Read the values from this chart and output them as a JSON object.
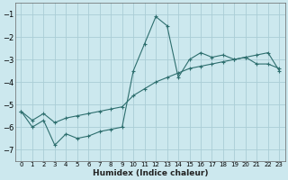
{
  "xlabel": "Humidex (Indice chaleur)",
  "ylabel": "",
  "background_color": "#cce8ee",
  "grid_color": "#aacdd6",
  "line_color": "#2d6e6e",
  "xlim": [
    -0.5,
    23.5
  ],
  "ylim": [
    -7.5,
    -0.5
  ],
  "yticks": [
    -7,
    -6,
    -5,
    -4,
    -3,
    -2,
    -1
  ],
  "xticks": [
    0,
    1,
    2,
    3,
    4,
    5,
    6,
    7,
    8,
    9,
    10,
    11,
    12,
    13,
    14,
    15,
    16,
    17,
    18,
    19,
    20,
    21,
    22,
    23
  ],
  "line1_x": [
    0,
    1,
    2,
    3,
    4,
    5,
    6,
    7,
    8,
    9,
    10,
    11,
    12,
    13,
    14,
    15,
    16,
    17,
    18,
    19,
    20,
    21,
    22,
    23
  ],
  "line1_y": [
    -5.3,
    -6.0,
    -5.7,
    -6.8,
    -6.3,
    -6.5,
    -6.4,
    -6.2,
    -6.1,
    -6.0,
    -3.5,
    -2.3,
    -1.1,
    -1.5,
    -3.8,
    -3.0,
    -2.7,
    -2.9,
    -2.8,
    -3.0,
    -2.9,
    -3.2,
    -3.2,
    -3.4
  ],
  "line2_x": [
    0,
    1,
    2,
    3,
    4,
    5,
    6,
    7,
    8,
    9,
    10,
    11,
    12,
    13,
    14,
    15,
    16,
    17,
    18,
    19,
    20,
    21,
    22,
    23
  ],
  "line2_y": [
    -5.3,
    -5.7,
    -5.4,
    -5.8,
    -5.6,
    -5.5,
    -5.4,
    -5.3,
    -5.2,
    -5.1,
    -4.6,
    -4.3,
    -4.0,
    -3.8,
    -3.6,
    -3.4,
    -3.3,
    -3.2,
    -3.1,
    -3.0,
    -2.9,
    -2.8,
    -2.7,
    -3.5
  ]
}
